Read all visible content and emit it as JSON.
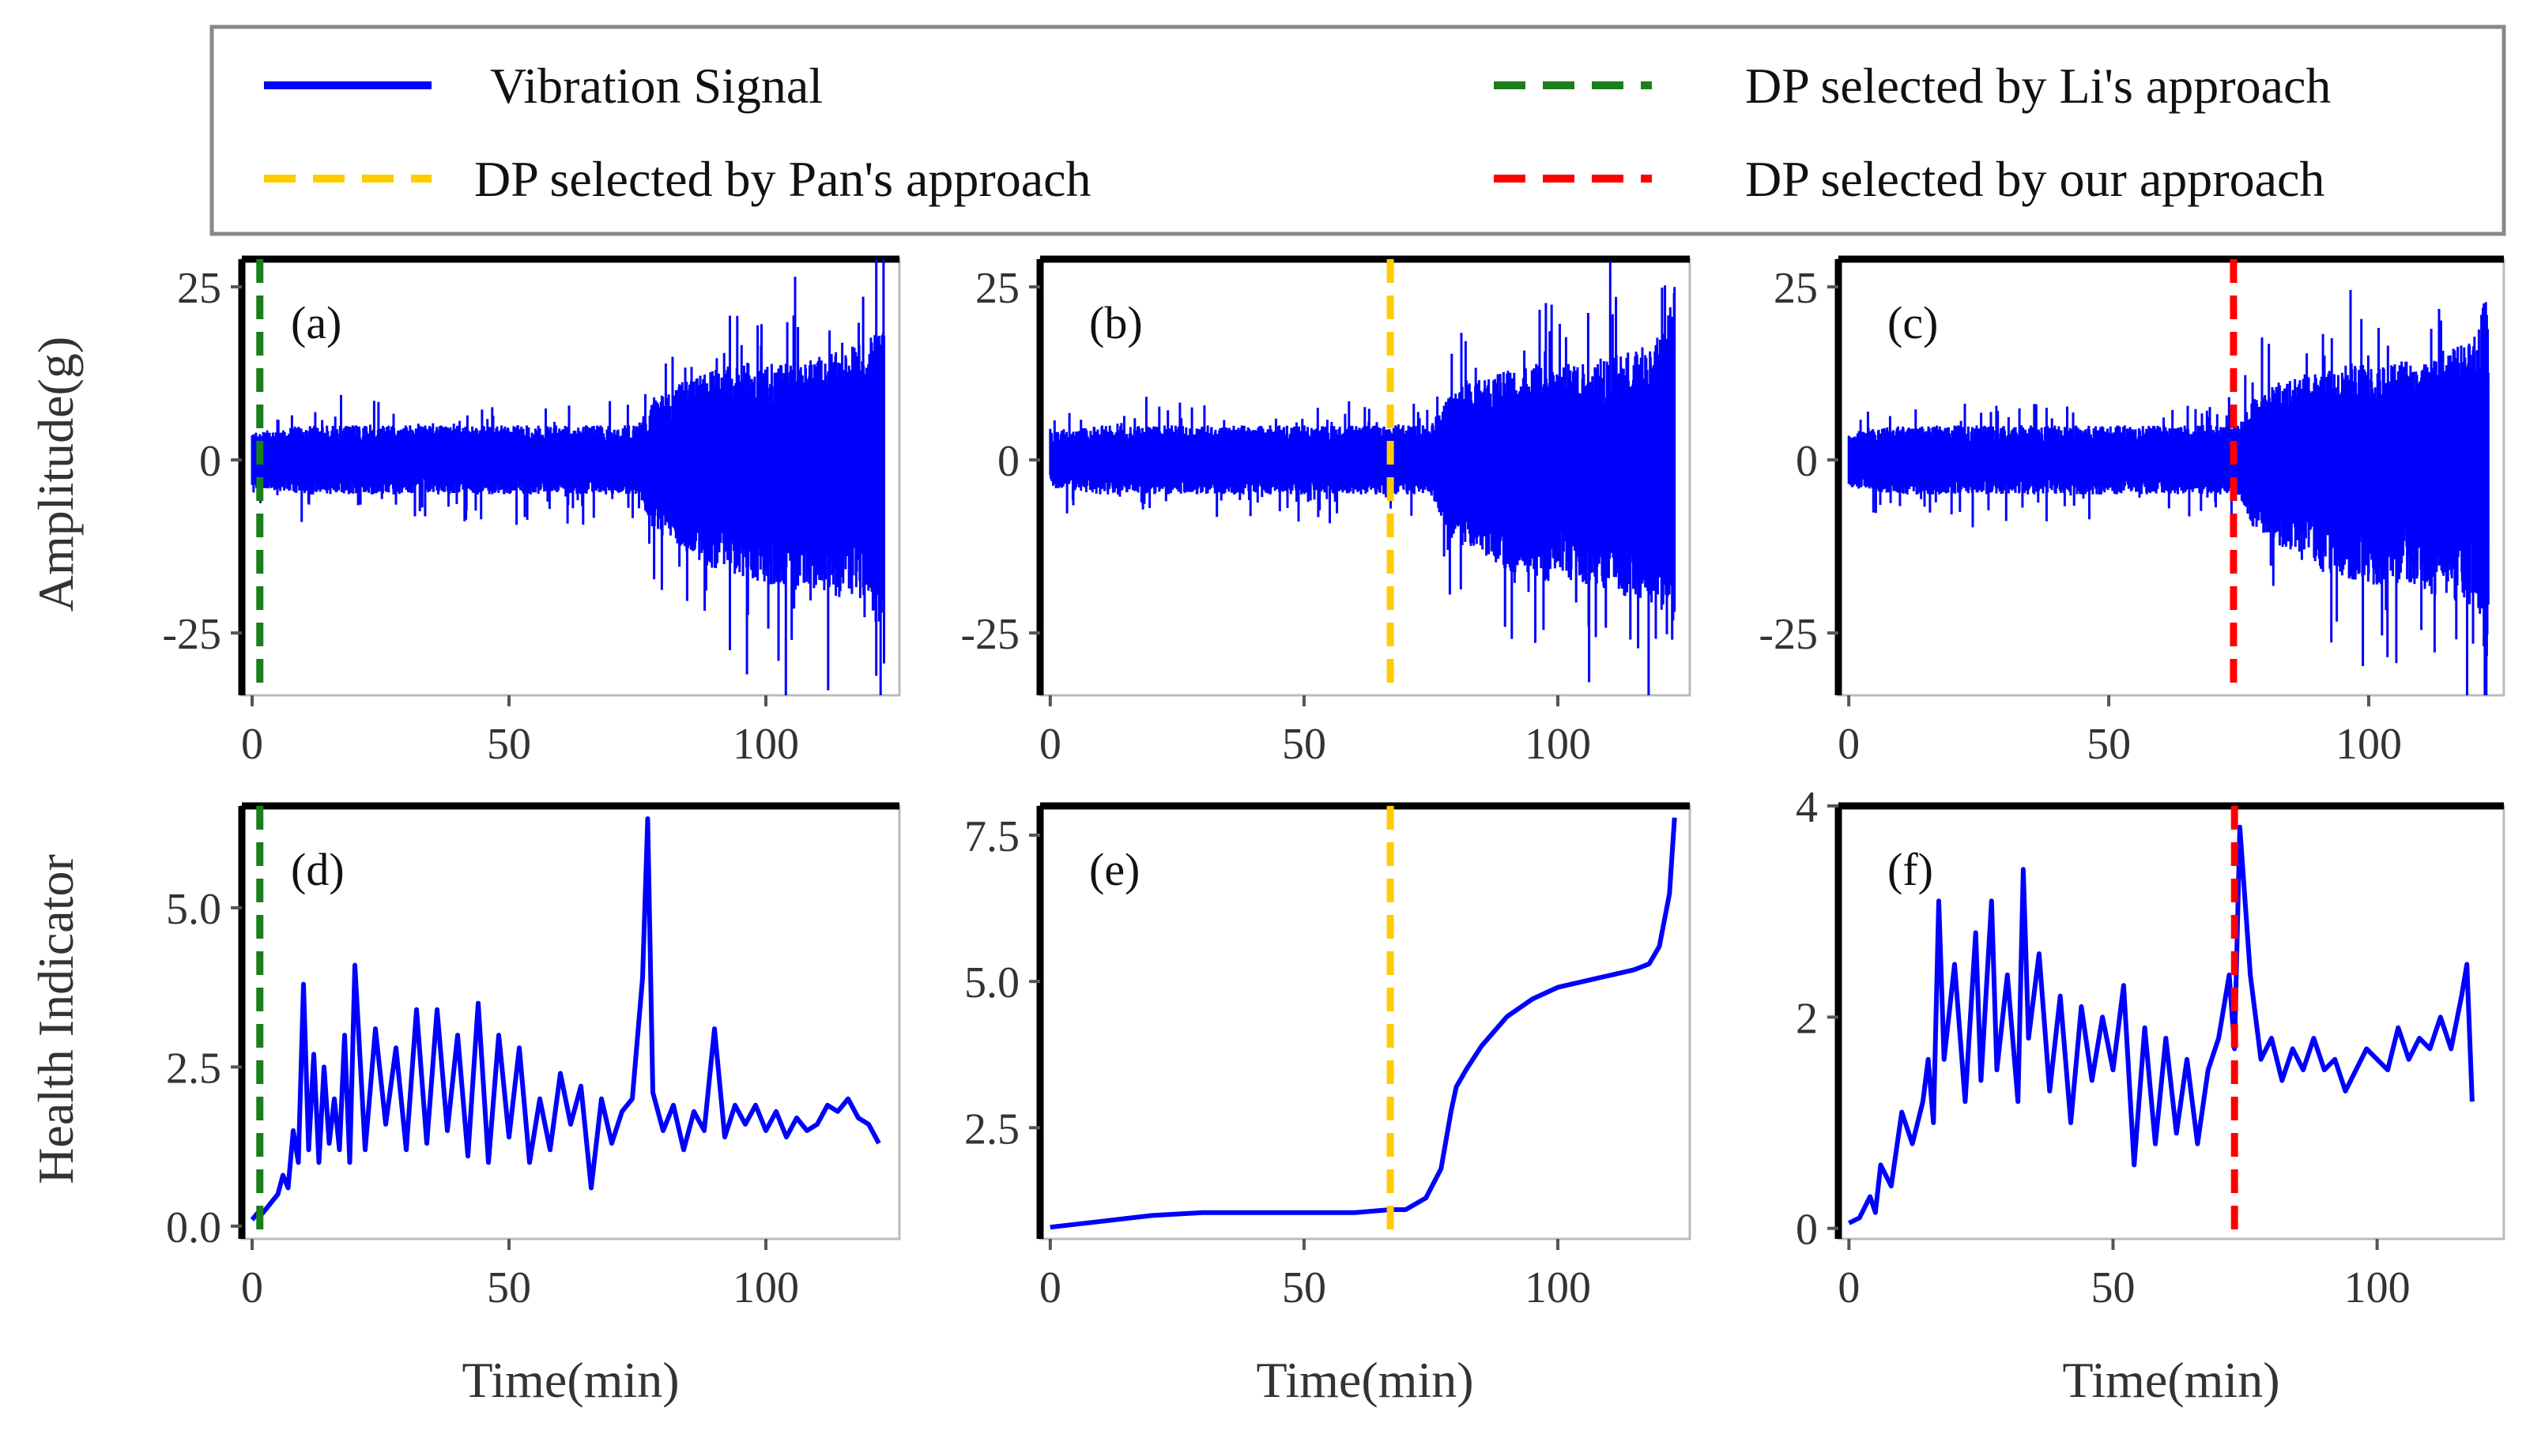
{
  "colors": {
    "signal": "#0000ff",
    "li": "#1a7f1a",
    "pan": "#ffcc00",
    "ours": "#ff0000",
    "legend_border": "#888888",
    "axes": "#000000"
  },
  "legend": {
    "items": [
      {
        "id": "signal",
        "label": "Vibration Signal",
        "style": "solid"
      },
      {
        "id": "li",
        "label": "DP selected by Li's  approach",
        "style": "dashed"
      },
      {
        "id": "pan",
        "label": "DP selected by Pan's  approach",
        "style": "dashed"
      },
      {
        "id": "ours",
        "label": "DP selected by our  approach",
        "style": "dashed"
      }
    ]
  },
  "chart_data": [
    {
      "panel": "(a)",
      "type": "line",
      "kind": "vibration",
      "xlabel": "",
      "ylabel": "Amplitude(g)",
      "xlim": [
        -2,
        126
      ],
      "ylim": [
        -34,
        29
      ],
      "xticks": [
        "0",
        "50",
        "100"
      ],
      "yticks": [
        "25",
        "0",
        "-25"
      ],
      "dp": {
        "method": "li",
        "x": 1.5
      },
      "envelope": {
        "x": [
          0,
          10,
          20,
          30,
          40,
          50,
          60,
          70,
          75,
          78,
          82,
          86,
          90,
          95,
          100,
          105,
          110,
          115,
          120,
          123
        ],
        "upper": [
          4,
          5,
          5,
          5,
          5,
          5,
          5,
          5,
          5,
          9,
          11,
          12,
          13,
          14,
          14,
          14,
          15,
          16,
          17,
          25
        ],
        "lower": [
          -4,
          -5,
          -5,
          -5,
          -5,
          -5,
          -5,
          -5,
          -5,
          -10,
          -12,
          -14,
          -16,
          -17,
          -18,
          -18,
          -19,
          -20,
          -21,
          -30
        ]
      }
    },
    {
      "panel": "(b)",
      "type": "line",
      "kind": "vibration",
      "xlabel": "",
      "ylabel": "",
      "xlim": [
        -2,
        126
      ],
      "ylim": [
        -34,
        29
      ],
      "xticks": [
        "0",
        "50",
        "100"
      ],
      "yticks": [
        "25",
        "0",
        "-25"
      ],
      "dp": {
        "method": "pan",
        "x": 67
      },
      "envelope": {
        "x": [
          0,
          10,
          20,
          30,
          40,
          50,
          60,
          70,
          75,
          78,
          82,
          86,
          90,
          95,
          100,
          105,
          110,
          115,
          120,
          123
        ],
        "upper": [
          4,
          5,
          5,
          5,
          5,
          5,
          5,
          5,
          5,
          9,
          11,
          12,
          13,
          14,
          14,
          14,
          15,
          16,
          17,
          25
        ],
        "lower": [
          -4,
          -5,
          -5,
          -5,
          -5,
          -5,
          -5,
          -5,
          -5,
          -10,
          -12,
          -14,
          -16,
          -17,
          -18,
          -18,
          -19,
          -20,
          -21,
          -30
        ]
      }
    },
    {
      "panel": "(c)",
      "type": "line",
      "kind": "vibration",
      "xlabel": "",
      "ylabel": "",
      "xlim": [
        -2,
        126
      ],
      "ylim": [
        -34,
        29
      ],
      "xticks": [
        "0",
        "50",
        "100"
      ],
      "yticks": [
        "25",
        "0",
        "-25"
      ],
      "dp": {
        "method": "ours",
        "x": 74
      },
      "envelope": {
        "x": [
          0,
          10,
          20,
          30,
          40,
          50,
          60,
          70,
          75,
          78,
          82,
          86,
          90,
          95,
          100,
          105,
          110,
          115,
          120,
          123
        ],
        "upper": [
          4,
          5,
          5,
          5,
          5,
          5,
          5,
          5,
          5,
          9,
          11,
          12,
          13,
          14,
          14,
          14,
          15,
          16,
          17,
          25
        ],
        "lower": [
          -4,
          -5,
          -5,
          -5,
          -5,
          -5,
          -5,
          -5,
          -5,
          -10,
          -12,
          -14,
          -16,
          -17,
          -18,
          -18,
          -19,
          -20,
          -21,
          -30
        ]
      }
    },
    {
      "panel": "(d)",
      "type": "line",
      "kind": "hi",
      "xlabel": "Time(min)",
      "ylabel": "Health Indicator",
      "xlim": [
        -2,
        126
      ],
      "ylim": [
        -0.2,
        6.6
      ],
      "xticks": [
        "0",
        "50",
        "100"
      ],
      "yticks": [
        "5.0",
        "2.5",
        "0.0"
      ],
      "dp": {
        "method": "li",
        "x": 1.5
      },
      "x": [
        0,
        1,
        2,
        3,
        4,
        5,
        6,
        7,
        8,
        9,
        10,
        11,
        12,
        13,
        14,
        15,
        16,
        17,
        18,
        19,
        20,
        22,
        24,
        26,
        28,
        30,
        32,
        34,
        36,
        38,
        40,
        42,
        44,
        46,
        48,
        50,
        52,
        54,
        56,
        58,
        60,
        62,
        64,
        66,
        68,
        70,
        72,
        74,
        76,
        77,
        78,
        80,
        82,
        84,
        86,
        88,
        90,
        92,
        94,
        96,
        98,
        100,
        102,
        104,
        106,
        108,
        110,
        112,
        114,
        116,
        118,
        120,
        122
      ],
      "y": [
        0.1,
        0.2,
        0.2,
        0.3,
        0.4,
        0.5,
        0.8,
        0.6,
        1.5,
        1.0,
        3.8,
        1.2,
        2.7,
        1.0,
        2.5,
        1.3,
        2.0,
        1.2,
        3.0,
        1.0,
        4.1,
        1.2,
        3.1,
        1.6,
        2.8,
        1.2,
        3.4,
        1.3,
        3.4,
        1.5,
        3.0,
        1.1,
        3.5,
        1.0,
        3.0,
        1.4,
        2.8,
        1.0,
        2.0,
        1.2,
        2.4,
        1.6,
        2.2,
        0.6,
        2.0,
        1.3,
        1.8,
        2.0,
        3.9,
        6.4,
        2.1,
        1.5,
        1.9,
        1.2,
        1.8,
        1.5,
        3.1,
        1.4,
        1.9,
        1.6,
        1.9,
        1.5,
        1.8,
        1.4,
        1.7,
        1.5,
        1.6,
        1.9,
        1.8,
        2.0,
        1.7,
        1.6,
        1.3
      ]
    },
    {
      "panel": "(e)",
      "type": "line",
      "kind": "hi",
      "xlabel": "Time(min)",
      "ylabel": "",
      "xlim": [
        -2,
        126
      ],
      "ylim": [
        0.6,
        8.0
      ],
      "xticks": [
        "0",
        "50",
        "100"
      ],
      "yticks": [
        "7.5",
        "5.0",
        "2.5"
      ],
      "dp": {
        "method": "pan",
        "x": 67
      },
      "x": [
        0,
        10,
        20,
        30,
        40,
        50,
        60,
        67,
        70,
        74,
        77,
        79,
        80,
        82,
        85,
        88,
        90,
        95,
        100,
        105,
        110,
        115,
        118,
        120,
        122,
        123
      ],
      "y": [
        0.8,
        0.9,
        1.0,
        1.05,
        1.05,
        1.05,
        1.05,
        1.1,
        1.1,
        1.3,
        1.8,
        2.8,
        3.2,
        3.5,
        3.9,
        4.2,
        4.4,
        4.7,
        4.9,
        5.0,
        5.1,
        5.2,
        5.3,
        5.6,
        6.5,
        7.8
      ]
    },
    {
      "panel": "(f)",
      "type": "line",
      "kind": "hi",
      "xlabel": "Time(min)",
      "ylabel": "",
      "xlim": [
        -2,
        124
      ],
      "ylim": [
        -0.1,
        4.0
      ],
      "xticks": [
        "0",
        "50",
        "100"
      ],
      "yticks": [
        "4",
        "2",
        "0"
      ],
      "dp": {
        "method": "ours",
        "x": 73
      },
      "x": [
        0,
        2,
        4,
        5,
        6,
        8,
        10,
        12,
        14,
        15,
        16,
        17,
        18,
        20,
        22,
        24,
        25,
        27,
        28,
        30,
        32,
        33,
        34,
        36,
        38,
        40,
        42,
        44,
        46,
        48,
        50,
        52,
        54,
        56,
        58,
        60,
        62,
        64,
        66,
        68,
        70,
        72,
        73,
        74,
        76,
        78,
        80,
        82,
        84,
        86,
        88,
        90,
        92,
        94,
        96,
        98,
        100,
        102,
        104,
        106,
        108,
        110,
        112,
        114,
        116,
        117,
        118
      ],
      "y": [
        0.05,
        0.1,
        0.3,
        0.15,
        0.6,
        0.4,
        1.1,
        0.8,
        1.2,
        1.6,
        1.0,
        3.1,
        1.6,
        2.5,
        1.2,
        2.8,
        1.4,
        3.1,
        1.5,
        2.4,
        1.2,
        3.4,
        1.8,
        2.6,
        1.3,
        2.2,
        1.0,
        2.1,
        1.4,
        2.0,
        1.5,
        2.3,
        0.6,
        1.9,
        0.8,
        1.8,
        0.9,
        1.6,
        0.8,
        1.5,
        1.8,
        2.4,
        1.7,
        3.8,
        2.4,
        1.6,
        1.8,
        1.4,
        1.7,
        1.5,
        1.8,
        1.5,
        1.6,
        1.3,
        1.5,
        1.7,
        1.6,
        1.5,
        1.9,
        1.6,
        1.8,
        1.7,
        2.0,
        1.7,
        2.2,
        2.5,
        1.2
      ]
    }
  ]
}
